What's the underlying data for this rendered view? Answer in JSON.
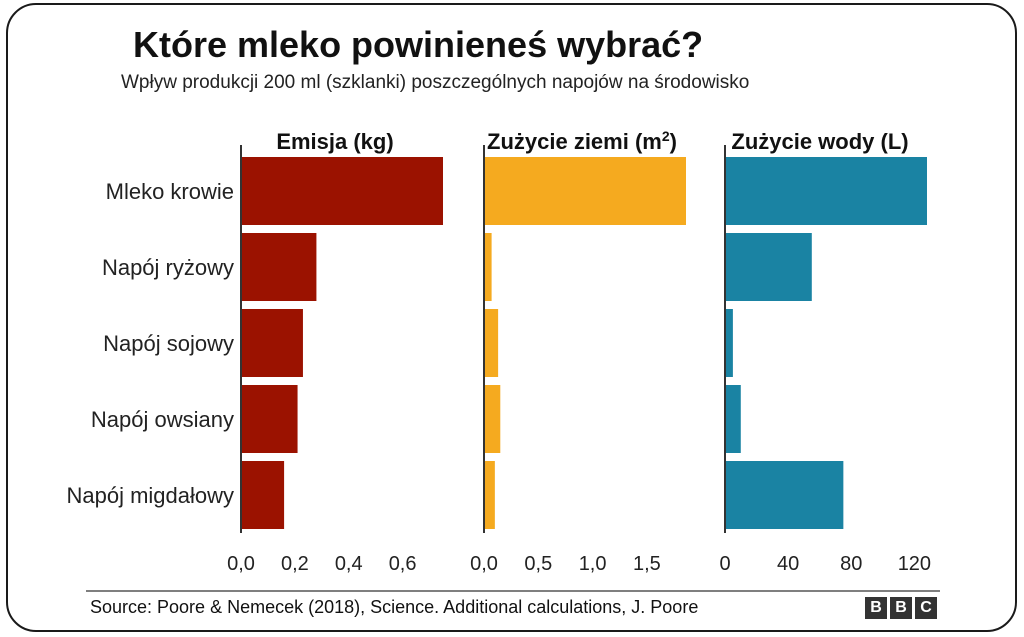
{
  "chart_data": {
    "type": "bar",
    "orientation": "horizontal",
    "title": "Które mleko powinieneś wybrać?",
    "subtitle": "Wpływ produkcji 200 ml (szklanki) poszczególnych napojów na środowisko",
    "categories": [
      "Mleko krowie",
      "Napój ryżowy",
      "Napój sojowy",
      "Napój owsiany",
      "Napój migdałowy"
    ],
    "panels": [
      {
        "title_text": "Zużycie ziemi (m",
        "title_sup": "",
        "title": "Emisja (kg)",
        "color": "#9b1200",
        "values": [
          0.75,
          0.28,
          0.23,
          0.21,
          0.16
        ],
        "xlim": [
          0,
          0.75
        ],
        "ticks": [
          0,
          0.2,
          0.4,
          0.6
        ],
        "tick_labels": [
          "0,0",
          "0,2",
          "0,4",
          "0,6"
        ]
      },
      {
        "title_text": "Zużycie ziemi (m",
        "title_sup": "2",
        "title": "Zużycie ziemi (m²)",
        "color": "#f5aa1f",
        "values": [
          1.86,
          0.07,
          0.13,
          0.15,
          0.1
        ],
        "xlim": [
          0,
          1.86
        ],
        "ticks": [
          0,
          0.5,
          1.0,
          1.5
        ],
        "tick_labels": [
          "0,0",
          "0,5",
          "1,0",
          "1,5"
        ]
      },
      {
        "title_text": "Zużycie wody (L)",
        "title_sup": "",
        "title": "Zużycie wody (L)",
        "color": "#1a83a3",
        "values": [
          128,
          55,
          5,
          10,
          75
        ],
        "xlim": [
          0,
          128
        ],
        "ticks": [
          0,
          40,
          80,
          120
        ],
        "tick_labels": [
          "0",
          "40",
          "80",
          "120"
        ]
      }
    ]
  },
  "source": "Source: Poore & Nemecek (2018), Science. Additional calculations, J. Poore",
  "logo": [
    "B",
    "B",
    "C"
  ]
}
